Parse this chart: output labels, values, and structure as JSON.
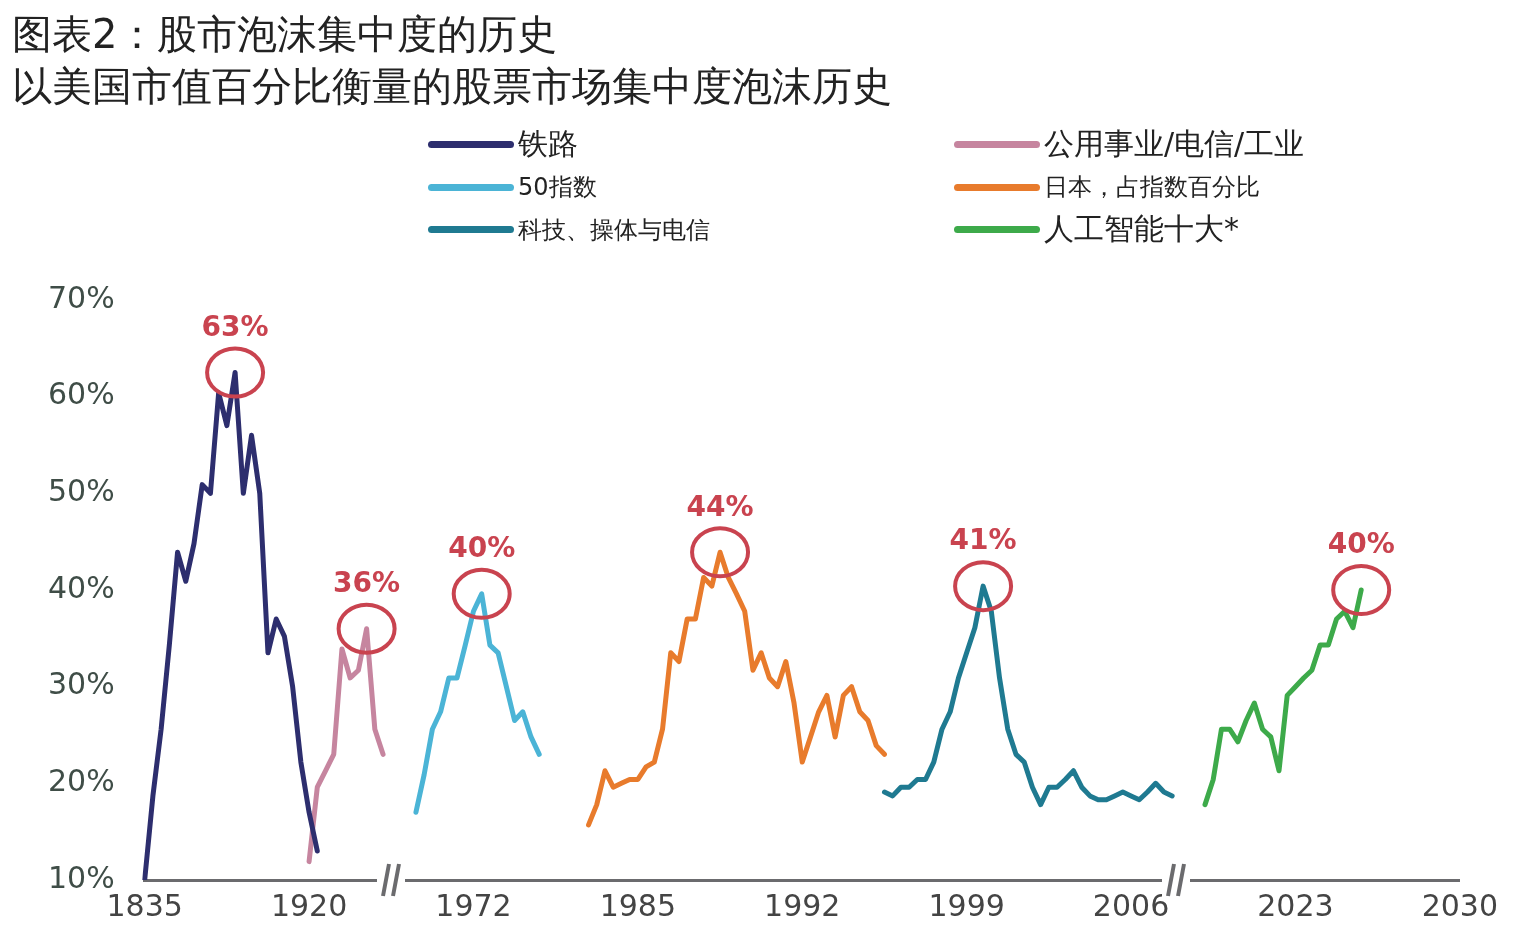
{
  "chart_data": {
    "type": "line",
    "title": "图表2：股市泡沫集中度的历史",
    "subtitle": "以美国市值百分比衡量的股票市场集中度泡沫历史",
    "categories": [
      "1835",
      null,
      null,
      null,
      null,
      null,
      null,
      null,
      null,
      null,
      null,
      null,
      null,
      null,
      null,
      null,
      null,
      null,
      null,
      null,
      "1920",
      null,
      null,
      null,
      null,
      null,
      null,
      null,
      null,
      null,
      null,
      null,
      null,
      null,
      null,
      null,
      null,
      null,
      null,
      null,
      "1972",
      null,
      null,
      null,
      null,
      null,
      null,
      null,
      null,
      null,
      null,
      null,
      null,
      null,
      null,
      null,
      null,
      null,
      null,
      null,
      "1985",
      null,
      null,
      null,
      null,
      null,
      null,
      null,
      null,
      null,
      null,
      null,
      null,
      null,
      null,
      null,
      null,
      null,
      null,
      null,
      "1992",
      null,
      null,
      null,
      null,
      null,
      null,
      null,
      null,
      null,
      null,
      null,
      null,
      null,
      null,
      null,
      null,
      null,
      null,
      null,
      "1999",
      null,
      null,
      null,
      null,
      null,
      null,
      null,
      null,
      null,
      null,
      null,
      null,
      null,
      null,
      null,
      null,
      null,
      null,
      null,
      "2006",
      null,
      null,
      null,
      null,
      null,
      null,
      null,
      null,
      null,
      null,
      null,
      null,
      null,
      null,
      null,
      null,
      null,
      null,
      null,
      "2023",
      null,
      null,
      null,
      null,
      null,
      null,
      null,
      null,
      null,
      null,
      null,
      null,
      null,
      null,
      null,
      null,
      null,
      null,
      null,
      "2030"
    ],
    "series": [
      {
        "name": "铁路",
        "color": "#2d2e6e",
        "values": [
          10,
          18.7,
          25.6,
          34.3,
          43.9,
          40.9,
          44.8,
          50.9,
          50,
          60.4,
          57,
          62.5,
          50,
          56,
          50,
          33.5,
          37,
          35.2,
          30,
          22.2,
          17,
          13,
          null,
          null,
          null,
          null,
          null,
          null,
          null,
          null,
          null,
          null,
          null,
          null,
          null,
          null,
          null,
          null,
          null,
          null,
          null,
          null,
          null,
          null,
          null,
          null,
          null,
          null,
          null,
          null,
          null,
          null,
          null,
          null,
          null,
          null,
          null,
          null,
          null,
          null,
          null,
          null,
          null,
          null,
          null,
          null,
          null,
          null,
          null,
          null,
          null,
          null,
          null,
          null,
          null,
          null,
          null,
          null,
          null,
          null,
          null,
          null,
          null,
          null,
          null,
          null,
          null,
          null,
          null,
          null,
          null,
          null,
          null,
          null,
          null,
          null,
          null,
          null,
          null,
          null,
          null,
          null,
          null,
          null,
          null,
          null,
          null,
          null,
          null,
          null,
          null,
          null,
          null,
          null,
          null,
          null,
          null,
          null,
          null,
          null,
          null,
          null,
          null,
          null,
          null,
          null,
          null,
          null,
          null,
          null,
          null,
          null,
          null,
          null,
          null,
          null,
          null,
          null,
          null,
          null,
          null,
          null,
          null,
          null,
          null,
          null,
          null,
          null,
          null,
          null,
          null,
          null,
          null,
          null,
          null,
          null,
          null,
          null,
          null,
          null,
          null
        ]
      },
      {
        "name": "50指数",
        "color": "#4bb4d6",
        "values": [
          null,
          null,
          null,
          null,
          null,
          null,
          null,
          null,
          null,
          null,
          null,
          null,
          null,
          null,
          null,
          null,
          null,
          null,
          null,
          null,
          null,
          null,
          null,
          null,
          null,
          null,
          null,
          null,
          null,
          null,
          null,
          null,
          null,
          17,
          20.9,
          25.6,
          27.4,
          30.9,
          30.9,
          34.3,
          37.8,
          39.6,
          34.3,
          33.5,
          30,
          26.5,
          27.4,
          24.8,
          23,
          null,
          null,
          null,
          null,
          null,
          null,
          null,
          null,
          null,
          null,
          null,
          null,
          null,
          null,
          null,
          null,
          null,
          null,
          null,
          null,
          null,
          null,
          null,
          null,
          null,
          null,
          null,
          null,
          null,
          null,
          null,
          null,
          null,
          null,
          null,
          null,
          null,
          null,
          null,
          null,
          null,
          null,
          null,
          null,
          null,
          null,
          null,
          null,
          null,
          null,
          null,
          null,
          null,
          null,
          null,
          null,
          null,
          null,
          null,
          null,
          null,
          null,
          null,
          null,
          null,
          null,
          null,
          null,
          null,
          null,
          null,
          null,
          null,
          null,
          null,
          null,
          null,
          null,
          null,
          null,
          null,
          null,
          null,
          null,
          null,
          null,
          null,
          null,
          null,
          null,
          null,
          null,
          null,
          null,
          null,
          null,
          null,
          null,
          null,
          null,
          null,
          null,
          null,
          null,
          null,
          null,
          null,
          null,
          null,
          null,
          null,
          null
        ]
      },
      {
        "name": "科技、操体与电信",
        "color": "#1f7a91",
        "values": [
          null,
          null,
          null,
          null,
          null,
          null,
          null,
          null,
          null,
          null,
          null,
          null,
          null,
          null,
          null,
          null,
          null,
          null,
          null,
          null,
          null,
          null,
          null,
          null,
          null,
          null,
          null,
          null,
          null,
          null,
          null,
          null,
          null,
          null,
          null,
          null,
          null,
          null,
          null,
          null,
          null,
          null,
          null,
          null,
          null,
          null,
          null,
          null,
          null,
          null,
          null,
          null,
          null,
          null,
          null,
          null,
          null,
          null,
          null,
          null,
          null,
          null,
          null,
          null,
          null,
          null,
          null,
          null,
          null,
          null,
          null,
          null,
          null,
          null,
          null,
          null,
          null,
          null,
          null,
          null,
          null,
          null,
          null,
          null,
          null,
          null,
          null,
          null,
          null,
          null,
          19.1,
          18.7,
          19.6,
          19.6,
          20.4,
          20.4,
          22.2,
          25.6,
          27.4,
          30.9,
          33.5,
          36.1,
          40.4,
          37.8,
          30.9,
          25.6,
          23,
          22.2,
          19.6,
          17.8,
          19.6,
          19.6,
          20.4,
          21.3,
          19.6,
          18.7,
          18.3,
          18.3,
          18.7,
          19.1,
          18.7,
          18.3,
          19.1,
          20,
          19.1,
          18.7,
          null,
          null,
          null,
          null,
          null,
          null,
          null,
          null,
          null,
          null,
          null,
          null,
          null,
          null,
          null,
          null,
          null,
          null,
          null,
          null,
          null,
          null,
          null,
          null,
          null,
          null,
          null,
          null,
          null,
          null,
          null,
          null,
          null,
          null,
          null
        ]
      },
      {
        "name": "公用事业/电信/工业",
        "color": "#c6859f",
        "values": [
          null,
          null,
          null,
          null,
          null,
          null,
          null,
          null,
          null,
          null,
          null,
          null,
          null,
          null,
          null,
          null,
          null,
          null,
          null,
          null,
          11.9,
          19.6,
          21.3,
          23,
          33.9,
          30.9,
          31.7,
          36,
          25.6,
          23,
          null,
          null,
          null,
          null,
          null,
          null,
          null,
          null,
          null,
          null,
          null,
          null,
          null,
          null,
          null,
          null,
          null,
          null,
          null,
          null,
          null,
          null,
          null,
          null,
          null,
          null,
          null,
          null,
          null,
          null,
          null,
          null,
          null,
          null,
          null,
          null,
          null,
          null,
          null,
          null,
          null,
          null,
          null,
          null,
          null,
          null,
          null,
          null,
          null,
          null,
          null,
          null,
          null,
          null,
          null,
          null,
          null,
          null,
          null,
          null,
          null,
          null,
          null,
          null,
          null,
          null,
          null,
          null,
          null,
          null,
          null,
          null,
          null,
          null,
          null,
          null,
          null,
          null,
          null,
          null,
          null,
          null,
          null,
          null,
          null,
          null,
          null,
          null,
          null,
          null,
          null,
          null,
          null,
          null,
          null,
          null,
          null,
          null,
          null,
          null,
          null,
          null,
          null,
          null,
          null,
          null,
          null,
          null,
          null,
          null,
          null,
          null,
          null,
          null,
          null,
          null,
          null,
          null,
          null,
          null,
          null,
          null,
          null,
          null,
          null,
          null,
          null,
          null,
          null,
          null,
          null
        ]
      },
      {
        "name": "日本，占指数百分比",
        "color": "#e87b2c",
        "values": [
          null,
          null,
          null,
          null,
          null,
          null,
          null,
          null,
          null,
          null,
          null,
          null,
          null,
          null,
          null,
          null,
          null,
          null,
          null,
          null,
          null,
          null,
          null,
          null,
          null,
          null,
          null,
          null,
          null,
          null,
          null,
          null,
          null,
          null,
          null,
          null,
          null,
          null,
          null,
          null,
          null,
          null,
          null,
          null,
          null,
          null,
          null,
          null,
          null,
          null,
          null,
          null,
          null,
          null,
          15.7,
          17.8,
          21.3,
          19.6,
          20,
          20.4,
          20.4,
          21.7,
          22.2,
          25.6,
          33.5,
          32.6,
          37,
          37,
          41.3,
          40.4,
          43.9,
          41.3,
          39.6,
          37.8,
          31.7,
          33.5,
          30.9,
          30,
          32.6,
          28.3,
          22.2,
          24.8,
          27.4,
          29.1,
          24.8,
          29.1,
          30,
          27.4,
          26.5,
          23.9,
          23,
          null,
          null,
          null,
          null,
          null,
          null,
          null,
          null,
          null,
          null,
          null,
          null,
          null,
          null,
          null,
          null,
          null,
          null,
          null,
          null,
          null,
          null,
          null,
          null,
          null,
          null,
          null,
          null,
          null,
          null,
          null,
          null,
          null,
          null,
          null,
          null,
          null,
          null,
          null,
          null,
          null,
          null,
          null,
          null,
          null,
          null,
          null,
          null,
          null,
          null,
          null,
          null,
          null,
          null,
          null,
          null,
          null,
          null,
          null,
          null,
          null,
          null,
          null,
          null,
          null,
          null,
          null,
          null,
          null,
          null
        ]
      },
      {
        "name": "人工智能十大*",
        "color": "#3daa4a",
        "values": [
          null,
          null,
          null,
          null,
          null,
          null,
          null,
          null,
          null,
          null,
          null,
          null,
          null,
          null,
          null,
          null,
          null,
          null,
          null,
          null,
          null,
          null,
          null,
          null,
          null,
          null,
          null,
          null,
          null,
          null,
          null,
          null,
          null,
          null,
          null,
          null,
          null,
          null,
          null,
          null,
          null,
          null,
          null,
          null,
          null,
          null,
          null,
          null,
          null,
          null,
          null,
          null,
          null,
          null,
          null,
          null,
          null,
          null,
          null,
          null,
          null,
          null,
          null,
          null,
          null,
          null,
          null,
          null,
          null,
          null,
          null,
          null,
          null,
          null,
          null,
          null,
          null,
          null,
          null,
          null,
          null,
          null,
          null,
          null,
          null,
          null,
          null,
          null,
          null,
          null,
          null,
          null,
          null,
          null,
          null,
          null,
          null,
          null,
          null,
          null,
          null,
          null,
          null,
          null,
          null,
          null,
          null,
          null,
          null,
          null,
          null,
          null,
          null,
          null,
          null,
          null,
          null,
          null,
          null,
          null,
          null,
          null,
          null,
          null,
          null,
          null,
          null,
          null,
          null,
          17.8,
          20.4,
          25.6,
          25.6,
          24.3,
          26.5,
          28.3,
          25.6,
          24.8,
          21.3,
          29.1,
          30,
          30.9,
          31.7,
          34.3,
          34.3,
          37,
          37.8,
          36.1,
          40,
          null,
          null,
          null,
          null,
          null,
          null,
          null,
          null,
          null,
          null,
          null,
          null
        ]
      }
    ],
    "ylim": [
      10,
      70
    ],
    "yticks": [
      {
        "value": 10,
        "label": "10%"
      },
      {
        "value": 20,
        "label": "20%"
      },
      {
        "value": 30,
        "label": "30%"
      },
      {
        "value": 40,
        "label": "40%"
      },
      {
        "value": 50,
        "label": "50%"
      },
      {
        "value": 60,
        "label": "60%"
      },
      {
        "value": 70,
        "label": "70%"
      }
    ],
    "annotations": [
      "63%",
      "40%",
      "41%",
      "36%",
      "44%",
      "40%"
    ],
    "grid": false,
    "legend": "top",
    "marker": "none",
    "line_style": "solid"
  }
}
